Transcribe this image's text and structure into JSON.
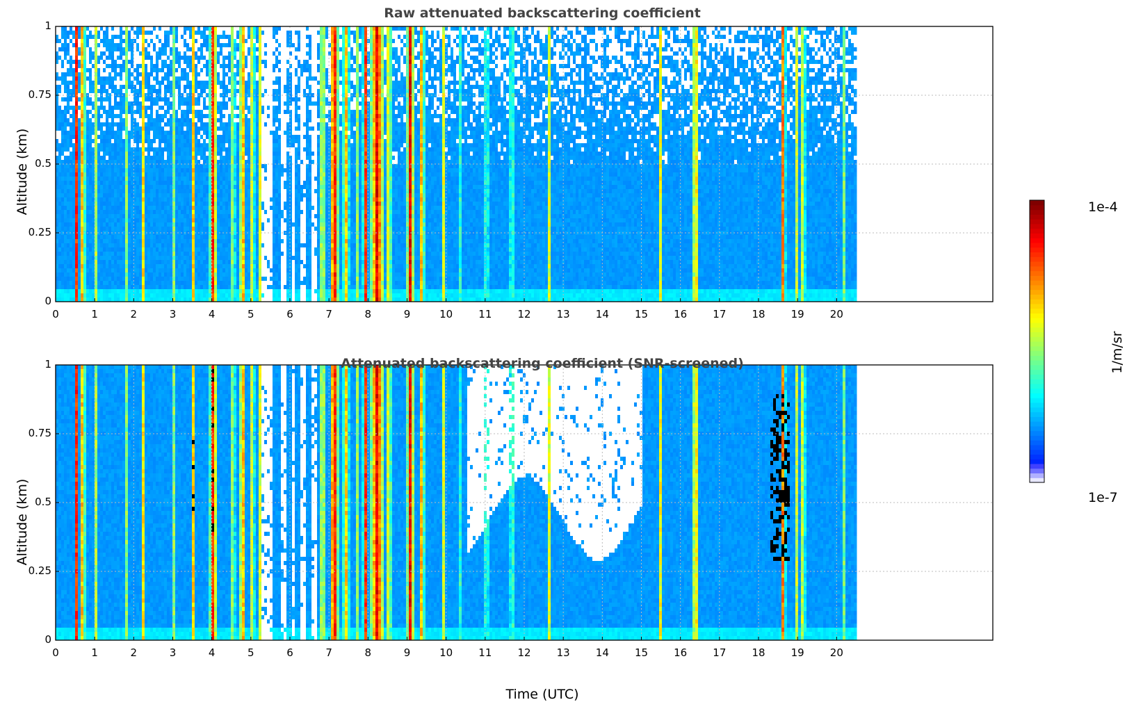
{
  "chart_data": [
    {
      "type": "heatmap",
      "title": "Raw attenuated backscattering coefficient",
      "xlabel": "",
      "ylabel": "Altitude (km)",
      "xlim": [
        0,
        24
      ],
      "ylim": [
        0,
        1
      ],
      "xticks": [
        "0",
        "1",
        "2",
        "3",
        "4",
        "5",
        "6",
        "7",
        "8",
        "9",
        "10",
        "11",
        "12",
        "13",
        "14",
        "15",
        "16",
        "17",
        "18",
        "19",
        "20"
      ],
      "yticks": [
        "0",
        "0.25",
        "0.5",
        "0.75",
        "1"
      ],
      "grid": true,
      "data_time_range": [
        0,
        20.45
      ],
      "colorscale": "jet",
      "features": [
        {
          "time": 0.65,
          "top_km": 1.0,
          "base_km": 0.0,
          "level": "high"
        },
        {
          "time": 3.0,
          "top_km": 1.0,
          "base_km": 0.0,
          "level": "medium"
        },
        {
          "time": 4.5,
          "top_km": 1.0,
          "base_km": 0.0,
          "level": "medium"
        },
        {
          "time": 7.3,
          "top_km": 1.0,
          "base_km": 0.0,
          "level": "very high"
        },
        {
          "time": 8.2,
          "top_km": 1.0,
          "base_km": 0.0,
          "level": "very high"
        },
        {
          "time": 9.2,
          "top_km": 1.0,
          "base_km": 0.0,
          "level": "high"
        },
        {
          "time": 15.45,
          "top_km": 1.0,
          "base_km": 0.0,
          "level": "medium"
        },
        {
          "time": 16.35,
          "top_km": 1.0,
          "base_km": 0.0,
          "level": "high"
        },
        {
          "time": 18.6,
          "top_km": 1.0,
          "base_km": 0.0,
          "level": "high"
        },
        {
          "time": 19.1,
          "top_km": 1.0,
          "base_km": 0.0,
          "level": "medium"
        },
        {
          "time": 20.2,
          "top_km": 1.0,
          "base_km": 0.0,
          "level": "medium"
        }
      ]
    },
    {
      "type": "heatmap",
      "title": "Attenuated backscattering coefficient (SNR-screened)",
      "xlabel": "Time (UTC)",
      "ylabel": "Altitude (km)",
      "xlim": [
        0,
        24
      ],
      "ylim": [
        0,
        1
      ],
      "xticks": [
        "0",
        "1",
        "2",
        "3",
        "4",
        "5",
        "6",
        "7",
        "8",
        "9",
        "10",
        "11",
        "12",
        "13",
        "14",
        "15",
        "16",
        "17",
        "18",
        "19",
        "20"
      ],
      "yticks": [
        "0",
        "0.25",
        "0.5",
        "0.75",
        "1"
      ],
      "grid": true,
      "data_time_range": [
        0,
        20.45
      ],
      "colorscale": "jet",
      "screened_out_region": [
        10.5,
        15.0
      ]
    }
  ],
  "colorbar": {
    "max_label": "1e-4",
    "min_label": "1e-7",
    "unit": "1/m/sr"
  },
  "colors": {
    "background_blue": "#0a2cff",
    "title_gray": "#444444"
  }
}
